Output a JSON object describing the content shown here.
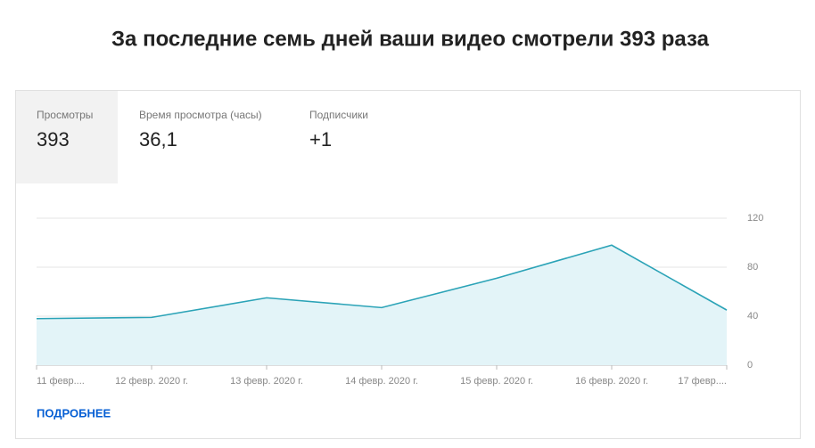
{
  "header": {
    "title": "За последние семь дней ваши видео смотрели 393 раза"
  },
  "tabs": [
    {
      "label": "Просмотры",
      "value": "393"
    },
    {
      "label": "Время просмотра (часы)",
      "value": "36,1"
    },
    {
      "label": "Подписчики",
      "value": "+1"
    }
  ],
  "chart_data": {
    "type": "line",
    "categories": [
      "11 февр....",
      "12 февр. 2020 г.",
      "13 февр. 2020 г.",
      "14 февр. 2020 г.",
      "15 февр. 2020 г.",
      "16 февр. 2020 г.",
      "17 февр...."
    ],
    "values": [
      38,
      39,
      55,
      47,
      71,
      98,
      45
    ],
    "color": "#2ba3b7",
    "area_color": "#e3f4f8",
    "ylim": [
      0,
      120
    ],
    "yticks": [
      0,
      40,
      80,
      120
    ],
    "grid": true
  },
  "link": "ПОДРОБНЕЕ"
}
